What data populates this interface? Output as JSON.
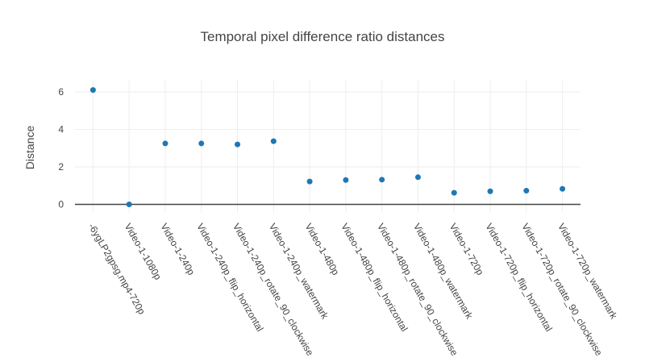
{
  "chart_data": {
    "type": "scatter",
    "title": "Temporal pixel difference ratio distances",
    "xlabel": "",
    "ylabel": "Distance",
    "categories": [
      "-6ygLP2gpsg.mp4-720p",
      "Video-1-1080p",
      "Video-1-240p",
      "Video-1-240p_flip_horizontal",
      "Video-1-240p_rotate_90_clockwise",
      "Video-1-240p_watermark",
      "Video-1-480p",
      "Video-1-480p_flip_horizontal",
      "Video-1-480p_rotate_90_clockwise",
      "Video-1-480p_watermark",
      "Video-1-720p",
      "Video-1-720p_flip_horizontal",
      "Video-1-720p_rotate_90_clockwise",
      "Video-1-720p_watermark"
    ],
    "values": [
      6.1,
      0.0,
      3.25,
      3.25,
      3.2,
      3.37,
      1.22,
      1.3,
      1.32,
      1.45,
      0.62,
      0.7,
      0.73,
      0.83
    ],
    "ylim": [
      -0.45,
      6.6
    ],
    "yticks": [
      0,
      2,
      4,
      6
    ],
    "marker_color": "#1f77b4",
    "grid": true,
    "zeroline": true
  }
}
